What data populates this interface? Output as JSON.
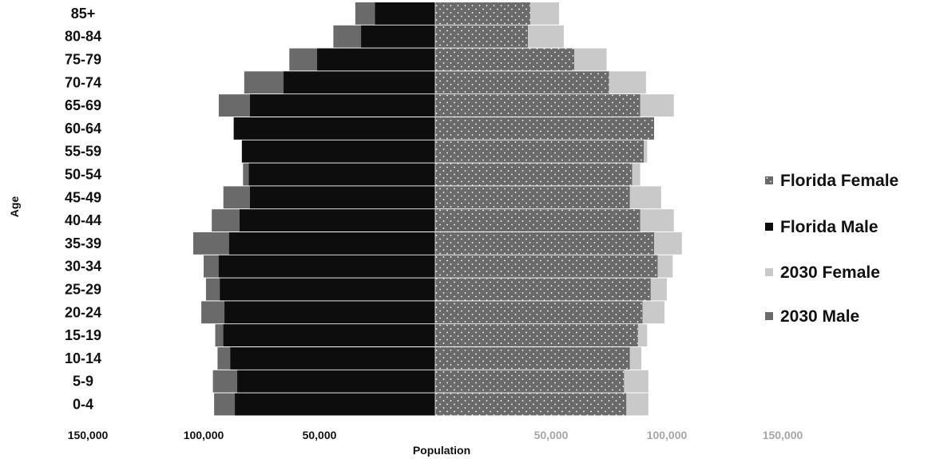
{
  "chart_data": {
    "type": "bar",
    "orientation": "horizontal",
    "chart_style": "population pyramid",
    "xlabel": "Population",
    "ylabel": "Age",
    "xlim": [
      -150000,
      150000
    ],
    "x_ticks_left": [
      "150,000",
      "100,000",
      "50,000"
    ],
    "x_ticks_right": [
      "50,000",
      "100,000",
      "150,000"
    ],
    "categories": [
      "85+",
      "80-84",
      "75-79",
      "70-74",
      "65-69",
      "60-64",
      "55-59",
      "50-54",
      "45-49",
      "40-44",
      "35-39",
      "30-34",
      "25-29",
      "20-24",
      "15-19",
      "10-14",
      "5-9",
      "0-4"
    ],
    "legend_position": "right",
    "series": [
      {
        "name": "Florida Female",
        "side": "right",
        "color": "#6a6a6a",
        "pattern": "white dots",
        "values": [
          41000,
          40000,
          60000,
          75000,
          88500,
          94500,
          90000,
          85000,
          84000,
          88500,
          94500,
          96000,
          93000,
          89500,
          87500,
          84000,
          81500,
          82500
        ]
      },
      {
        "name": "Florida Male",
        "side": "left",
        "color": "#0d0d0d",
        "values": [
          26000,
          32000,
          51000,
          65500,
          80000,
          87000,
          83500,
          80500,
          80000,
          84500,
          89000,
          93500,
          93000,
          91000,
          91500,
          88500,
          85500,
          86500
        ]
      },
      {
        "name": "2030 Female",
        "side": "right",
        "color": "#c9c9c9",
        "values": [
          53500,
          55500,
          74000,
          91000,
          103000,
          94500,
          91500,
          88500,
          97500,
          103000,
          106500,
          102500,
          100000,
          99000,
          91500,
          89000,
          92000,
          92000
        ]
      },
      {
        "name": "2030 Male",
        "side": "left",
        "color": "#6a6a6a",
        "values": [
          34500,
          44000,
          63000,
          82500,
          93500,
          87000,
          83500,
          83000,
          91500,
          96500,
          104500,
          100000,
          99000,
          101000,
          95000,
          94000,
          96000,
          95500
        ]
      }
    ]
  }
}
